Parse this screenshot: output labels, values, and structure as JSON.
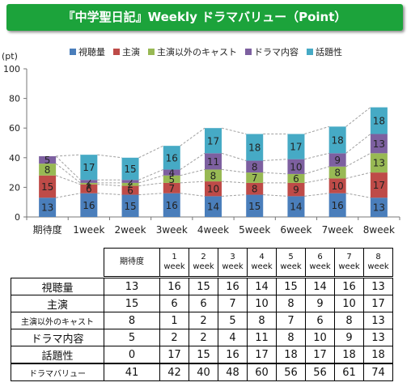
{
  "banner": {
    "title": "『中学聖日記』Weekly ドラマバリュー（Point）"
  },
  "chart_data": {
    "type": "bar",
    "stacked": true,
    "ylabel": "(pt)",
    "ylim": [
      0,
      100
    ],
    "yticks": [
      0,
      20,
      40,
      60,
      80,
      100
    ],
    "grid": false,
    "legend": "top",
    "categories": [
      "期待度",
      "1week",
      "2week",
      "3week",
      "4week",
      "5week",
      "6week",
      "7week",
      "8week"
    ],
    "series": [
      {
        "name": "視聴量",
        "color": "#4a7ebb",
        "values": [
          13,
          16,
          15,
          16,
          14,
          15,
          14,
          16,
          13
        ]
      },
      {
        "name": "主演",
        "color": "#be4b48",
        "values": [
          15,
          6,
          6,
          7,
          10,
          8,
          9,
          10,
          17
        ]
      },
      {
        "name": "主演以外のキャスト",
        "color": "#98b954",
        "values": [
          8,
          1,
          2,
          5,
          8,
          7,
          6,
          8,
          13
        ]
      },
      {
        "name": "ドラマ内容",
        "color": "#7d60a0",
        "values": [
          5,
          2,
          2,
          4,
          11,
          8,
          10,
          9,
          13
        ]
      },
      {
        "name": "話題性",
        "color": "#46aac5",
        "values": [
          0,
          17,
          15,
          16,
          17,
          18,
          17,
          18,
          18
        ]
      }
    ],
    "totals": [
      41,
      42,
      40,
      48,
      60,
      56,
      56,
      61,
      74
    ]
  },
  "table": {
    "headers": [
      {
        "top": "期待度",
        "bottom": ""
      },
      {
        "top": "1",
        "bottom": "week"
      },
      {
        "top": "2",
        "bottom": "week"
      },
      {
        "top": "3",
        "bottom": "week"
      },
      {
        "top": "4",
        "bottom": "week"
      },
      {
        "top": "5",
        "bottom": "week"
      },
      {
        "top": "6",
        "bottom": "week"
      },
      {
        "top": "7",
        "bottom": "week"
      },
      {
        "top": "8",
        "bottom": "week"
      }
    ],
    "rows": [
      {
        "label": "視聴量",
        "values": [
          "13",
          "16",
          "15",
          "16",
          "14",
          "15",
          "14",
          "16",
          "13"
        ]
      },
      {
        "label": "主演",
        "values": [
          "15",
          "6",
          "6",
          "7",
          "10",
          "8",
          "9",
          "10",
          "17"
        ]
      },
      {
        "label": "主演以外のキャスト",
        "values": [
          "8",
          "1",
          "2",
          "5",
          "8",
          "7",
          "6",
          "8",
          "13"
        ]
      },
      {
        "label": "ドラマ内容",
        "values": [
          "5",
          "2",
          "2",
          "4",
          "11",
          "8",
          "10",
          "9",
          "13"
        ]
      },
      {
        "label": "話題性",
        "values": [
          "0",
          "17",
          "15",
          "16",
          "17",
          "18",
          "17",
          "18",
          "18"
        ]
      }
    ],
    "total_row": {
      "label": "ドラマバリュー",
      "values": [
        "41",
        "42",
        "40",
        "48",
        "60",
        "56",
        "56",
        "61",
        "74"
      ]
    }
  }
}
